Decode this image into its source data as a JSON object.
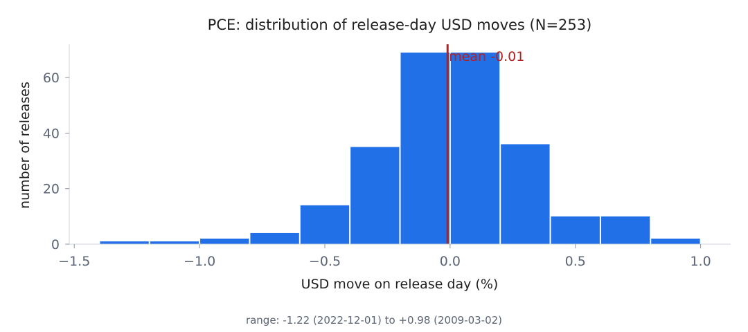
{
  "chart_data": {
    "type": "bar",
    "title": "PCE: distribution of release-day USD moves (N=253)",
    "xlabel": "USD move on release day (%)",
    "ylabel": "number of releases",
    "xlim": [
      -1.52,
      1.12
    ],
    "ylim": [
      0,
      72
    ],
    "x_ticks": [
      -1.5,
      -1.0,
      -0.5,
      0.0,
      0.5,
      1.0
    ],
    "x_tick_labels": [
      "−1.5",
      "−1.0",
      "−0.5",
      "0.0",
      "0.5",
      "1.0"
    ],
    "y_ticks": [
      0,
      20,
      40,
      60
    ],
    "y_tick_labels": [
      "0",
      "20",
      "40",
      "60"
    ],
    "bins": [
      {
        "x0": -1.4,
        "x1": -1.2,
        "count": 1
      },
      {
        "x0": -1.2,
        "x1": -1.0,
        "count": 1
      },
      {
        "x0": -1.0,
        "x1": -0.8,
        "count": 2
      },
      {
        "x0": -0.8,
        "x1": -0.6,
        "count": 4
      },
      {
        "x0": -0.6,
        "x1": -0.4,
        "count": 14
      },
      {
        "x0": -0.4,
        "x1": -0.2,
        "count": 35
      },
      {
        "x0": -0.2,
        "x1": 0.0,
        "count": 69
      },
      {
        "x0": 0.0,
        "x1": 0.2,
        "count": 69
      },
      {
        "x0": 0.2,
        "x1": 0.4,
        "count": 36
      },
      {
        "x0": 0.4,
        "x1": 0.6,
        "count": 10
      },
      {
        "x0": 0.6,
        "x1": 0.8,
        "count": 10
      },
      {
        "x0": 0.8,
        "x1": 1.0,
        "count": 2
      }
    ],
    "bar_color": "#2170e8",
    "mean": -0.01,
    "mean_label": "mean -0.01",
    "mean_color": "#b22222",
    "zero_line_color": "#ffffff",
    "grid": false
  },
  "footnote": "range: -1.22 (2022-12-01) to +0.98 (2009-03-02)"
}
